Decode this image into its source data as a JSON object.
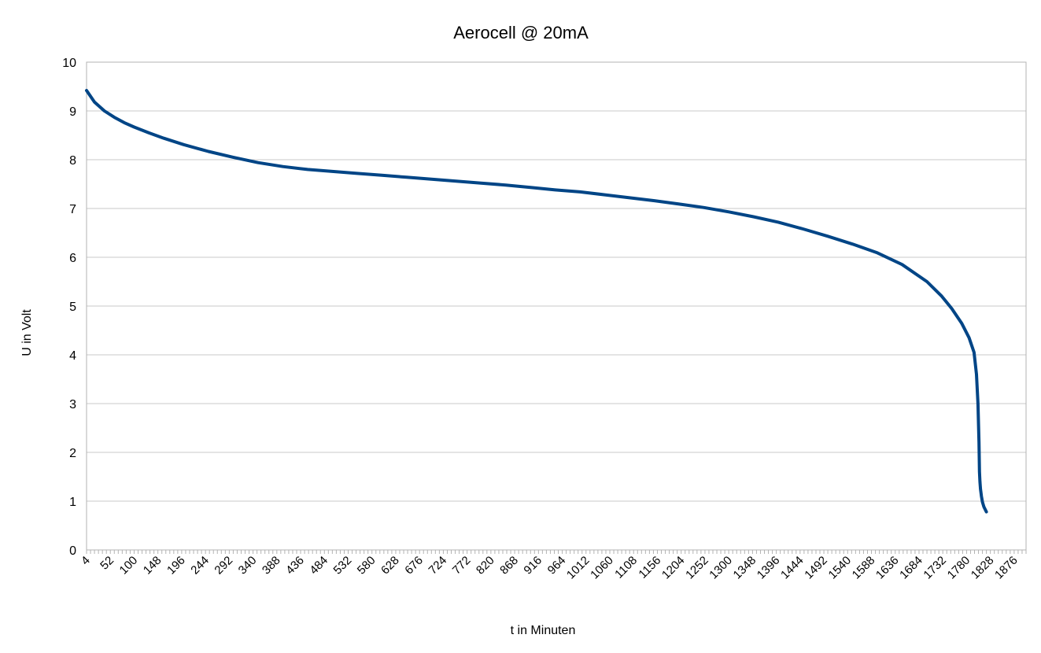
{
  "chart_data": {
    "type": "line",
    "title": "Aerocell @ 20mA",
    "xlabel": "t in Minuten",
    "ylabel": "U in Volt",
    "ylim": [
      0,
      10
    ],
    "yticks": [
      "0",
      "1",
      "2",
      "3",
      "4",
      "5",
      "6",
      "7",
      "8",
      "9",
      "10"
    ],
    "xlim": [
      4,
      1900
    ],
    "xticks": [
      "4",
      "52",
      "100",
      "148",
      "196",
      "244",
      "292",
      "340",
      "388",
      "436",
      "484",
      "532",
      "580",
      "628",
      "676",
      "724",
      "772",
      "820",
      "868",
      "916",
      "964",
      "1012",
      "1060",
      "1108",
      "1156",
      "1204",
      "1252",
      "1300",
      "1348",
      "1396",
      "1444",
      "1492",
      "1540",
      "1588",
      "1636",
      "1684",
      "1732",
      "1780",
      "1828",
      "1876"
    ],
    "grid": "horizontal",
    "legend": "none",
    "series_color": "#004586",
    "series": [
      {
        "x": [
          4,
          20,
          40,
          60,
          80,
          100,
          130,
          160,
          200,
          250,
          300,
          350,
          400,
          450,
          500,
          550,
          600,
          650,
          700,
          750,
          800,
          850,
          900,
          950,
          1000,
          1050,
          1100,
          1150,
          1200,
          1250,
          1300,
          1350,
          1400,
          1450,
          1500,
          1550,
          1600,
          1650,
          1700,
          1730,
          1750,
          1770,
          1785,
          1795,
          1800,
          1803,
          1805,
          1806,
          1807,
          1808,
          1810,
          1812,
          1815,
          1820
        ],
        "y": [
          9.42,
          9.18,
          9.0,
          8.87,
          8.76,
          8.67,
          8.55,
          8.44,
          8.31,
          8.17,
          8.05,
          7.94,
          7.86,
          7.8,
          7.76,
          7.72,
          7.68,
          7.64,
          7.6,
          7.56,
          7.52,
          7.48,
          7.43,
          7.38,
          7.34,
          7.28,
          7.22,
          7.16,
          7.09,
          7.02,
          6.93,
          6.83,
          6.72,
          6.58,
          6.43,
          6.27,
          6.09,
          5.85,
          5.5,
          5.2,
          4.95,
          4.65,
          4.35,
          4.05,
          3.6,
          3.0,
          2.2,
          1.6,
          1.4,
          1.25,
          1.1,
          0.98,
          0.88,
          0.78
        ]
      }
    ]
  }
}
